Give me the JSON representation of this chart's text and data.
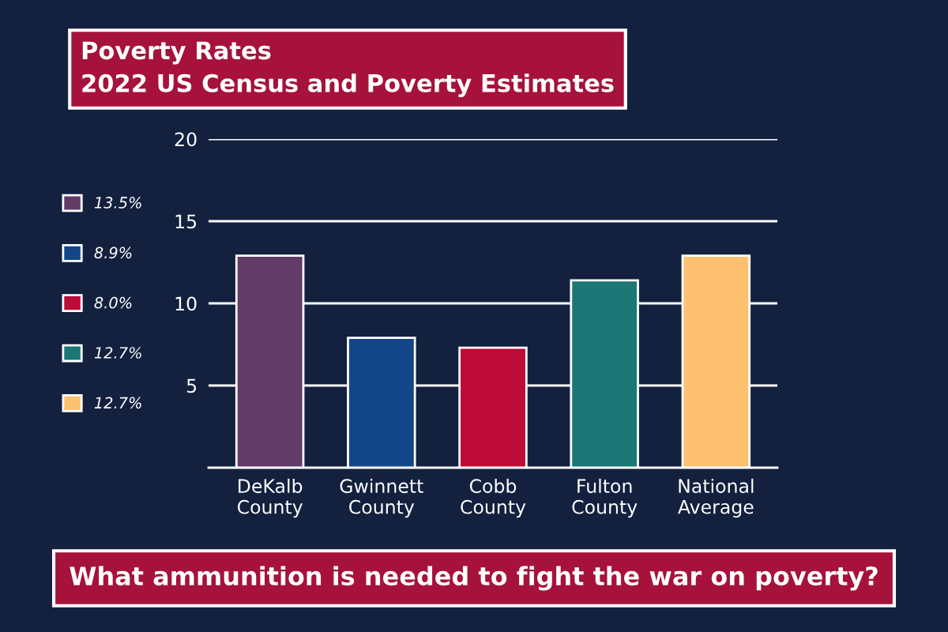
{
  "chart_data": {
    "type": "bar",
    "title": "Poverty Rates",
    "subtitle": "2022 US Census and Poverty Estimates",
    "categories": [
      "DeKalb\nCounty",
      "Gwinnett\nCounty",
      "Cobb\nCounty",
      "Fulton\nCounty",
      "National\nAverage"
    ],
    "series": [
      {
        "name": "13.5%",
        "color": "#623c66",
        "values": [
          12.9,
          null,
          null,
          null,
          null
        ]
      },
      {
        "name": "8.9%",
        "color": "#14468a",
        "values": [
          null,
          7.9,
          null,
          null,
          null
        ]
      },
      {
        "name": "8.0%",
        "color": "#be0c38",
        "values": [
          null,
          null,
          7.3,
          null,
          null
        ]
      },
      {
        "name": "12.7%",
        "color": "#1b7775",
        "values": [
          null,
          null,
          null,
          11.4,
          null
        ]
      },
      {
        "name": "12.7%",
        "color": "#fec172",
        "values": [
          null,
          null,
          null,
          null,
          12.9
        ]
      }
    ],
    "ylim": [
      0,
      20
    ],
    "yticks": [
      5,
      10,
      15,
      20
    ],
    "grid": "y",
    "legend": "left",
    "annotations": [
      "What ammunition is needed to fight the war on poverty?"
    ]
  }
}
